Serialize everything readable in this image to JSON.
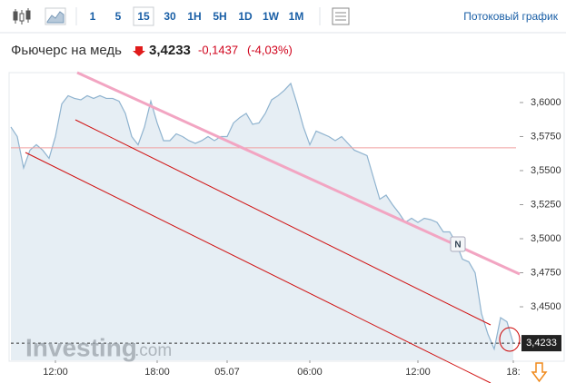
{
  "toolbar": {
    "intervals": [
      "1",
      "5",
      "15",
      "30",
      "1H",
      "5H",
      "1D",
      "1W",
      "1M"
    ],
    "active": "15",
    "stream_link": "Потоковый график"
  },
  "header": {
    "title": "Фьючерс на медь",
    "price": "3,4233",
    "change": "-0,1437",
    "change_pct": "(-4,03%)"
  },
  "watermark": {
    "brand": "Investing",
    "suffix": ".com"
  },
  "chart_data": {
    "type": "line",
    "categories": [
      null,
      null,
      null,
      null,
      null,
      null,
      null,
      "12:00",
      null,
      null,
      null,
      null,
      null,
      null,
      null,
      null,
      null,
      null,
      null,
      null,
      null,
      null,
      null,
      "18:00",
      null,
      null,
      null,
      null,
      null,
      null,
      null,
      null,
      null,
      null,
      "05.07",
      null,
      null,
      null,
      null,
      null,
      null,
      null,
      null,
      null,
      null,
      null,
      null,
      "06:00",
      null,
      null,
      null,
      null,
      null,
      null,
      null,
      null,
      null,
      null,
      null,
      null,
      null,
      null,
      null,
      null,
      "12:00",
      null,
      null,
      null,
      null,
      null,
      null,
      null,
      null,
      null,
      null,
      null,
      null,
      null,
      null,
      "18:"
    ],
    "values": [
      3.582,
      3.575,
      3.552,
      3.565,
      3.569,
      3.565,
      3.559,
      3.575,
      3.599,
      3.605,
      3.603,
      3.602,
      3.605,
      3.603,
      3.605,
      3.603,
      3.603,
      3.601,
      3.592,
      3.575,
      3.569,
      3.582,
      3.601,
      3.585,
      3.572,
      3.572,
      3.577,
      3.575,
      3.572,
      3.57,
      3.572,
      3.575,
      3.572,
      3.575,
      3.575,
      3.585,
      3.589,
      3.592,
      3.584,
      3.585,
      3.592,
      3.602,
      3.605,
      3.609,
      3.614,
      3.599,
      3.582,
      3.569,
      3.579,
      3.577,
      3.575,
      3.572,
      3.575,
      3.57,
      3.565,
      3.563,
      3.561,
      3.545,
      3.529,
      3.532,
      3.525,
      3.519,
      3.512,
      3.515,
      3.512,
      3.515,
      3.514,
      3.512,
      3.505,
      3.505,
      3.497,
      3.485,
      3.483,
      3.475,
      3.445,
      3.43,
      3.419,
      3.442,
      3.439,
      3.4233
    ],
    "color": "#8fb3cf",
    "fill": "#e6eef4",
    "ylim": [
      3.4107,
      3.6153
    ],
    "yticks": [
      {
        "value": 3.6,
        "label": "3,6000"
      },
      {
        "value": 3.575,
        "label": "3,5750"
      },
      {
        "value": 3.55,
        "label": "3,5500"
      },
      {
        "value": 3.525,
        "label": "3,5250"
      },
      {
        "value": 3.5,
        "label": "3,5000"
      },
      {
        "value": 3.475,
        "label": "3,4750"
      },
      {
        "value": 3.45,
        "label": "3,4500"
      }
    ],
    "reference_line": 3.5667,
    "last_price": 3.4233,
    "last_price_label": "3,4233"
  }
}
